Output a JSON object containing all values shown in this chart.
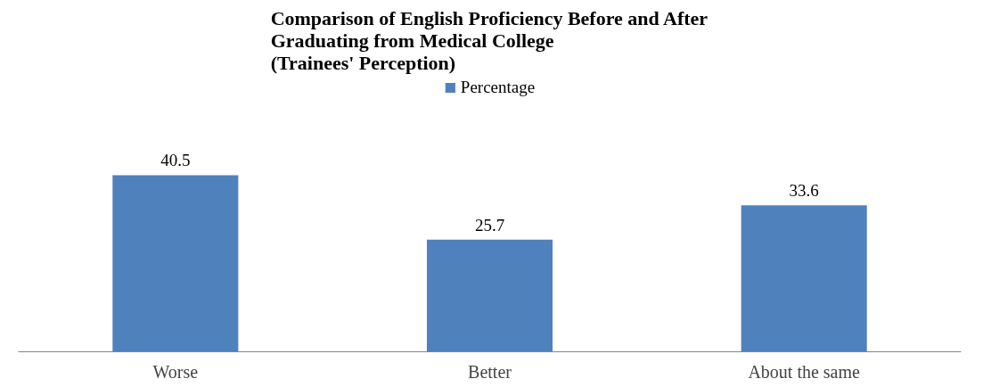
{
  "chart_data": {
    "type": "bar",
    "title": "Comparison of English Proficiency Before and After\nGraduating from Medical College\n(Trainees' Perception)",
    "categories": [
      "Worse",
      "Better",
      "About the same"
    ],
    "series": [
      {
        "name": "Percentage",
        "color": "#4f81bd",
        "values": [
          40.5,
          25.7,
          33.6
        ]
      }
    ],
    "data_labels": true,
    "legend": "top",
    "grid": false
  }
}
